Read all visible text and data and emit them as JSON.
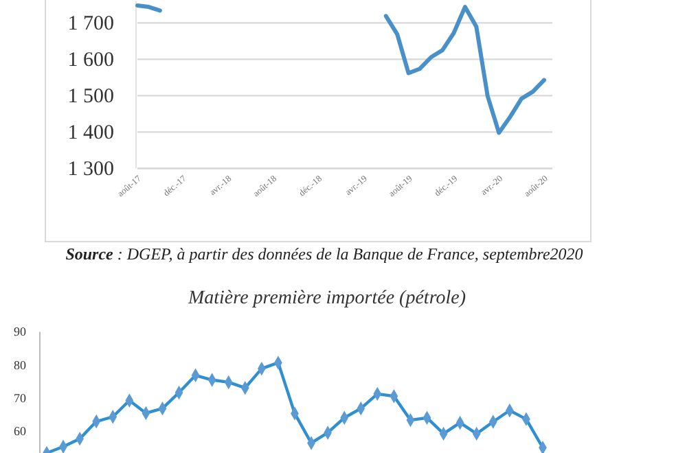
{
  "chart_data": [
    {
      "type": "line",
      "categories": [
        "août-17",
        null,
        null,
        null,
        "déc.-17",
        null,
        null,
        null,
        "avr.-18",
        null,
        null,
        null,
        "août-18",
        null,
        null,
        null,
        "déc.-18",
        null,
        null,
        null,
        "avr.-19",
        null,
        null,
        null,
        "août-19",
        null,
        null,
        null,
        "déc.-19",
        null,
        null,
        null,
        "avr.-20",
        null,
        null,
        null,
        "août-20"
      ],
      "values": [
        1748,
        1744,
        1734,
        null,
        null,
        null,
        null,
        null,
        null,
        null,
        null,
        null,
        null,
        null,
        null,
        null,
        null,
        null,
        null,
        null,
        null,
        null,
        1719,
        1669,
        1562,
        1574,
        1606,
        1625,
        1672,
        1744,
        1690,
        1499,
        1398,
        1442,
        1492,
        1511,
        1543
      ],
      "color": "#4a90c8",
      "ylim": [
        1300,
        1760
      ],
      "yticks": [
        {
          "value": 1300,
          "label": "1 300"
        },
        {
          "value": 1400,
          "label": "1 400"
        },
        {
          "value": 1500,
          "label": "1 500"
        },
        {
          "value": 1600,
          "label": "1 600"
        },
        {
          "value": 1700,
          "label": "1 700"
        }
      ],
      "grid": "y",
      "marker": "none",
      "annotations": [
        "Source : DGEP, à partir des données de la Banque de France, septembre2020"
      ]
    },
    {
      "type": "line",
      "title": "Matière première importée (pétrole)",
      "categories": [
        null,
        null,
        null,
        null,
        null,
        null,
        null,
        null,
        null,
        null,
        null,
        null,
        null,
        null,
        null,
        null,
        null,
        null,
        null,
        null,
        null,
        null,
        null,
        null,
        null,
        null,
        null,
        null,
        null,
        null,
        null
      ],
      "values": [
        53.5,
        55.4,
        57.8,
        63.0,
        64.4,
        69.3,
        65.5,
        66.9,
        71.7,
        76.9,
        75.5,
        74.8,
        73.1,
        78.9,
        80.7,
        65.4,
        56.5,
        59.6,
        64.1,
        66.9,
        71.3,
        70.6,
        63.4,
        64.1,
        59.3,
        62.6,
        59.3,
        62.9,
        66.3,
        63.7,
        55.1
      ],
      "color": "#2f8fd0",
      "ylim": [
        53,
        90
      ],
      "yticks": [
        60,
        70,
        80,
        90
      ],
      "grid": false,
      "marker": "diamond",
      "tick_labels": "y"
    }
  ]
}
